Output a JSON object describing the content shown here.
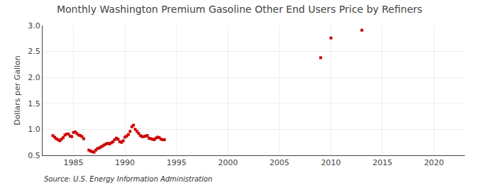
{
  "chart_data": {
    "type": "scatter",
    "title": "Monthly Washington Premium Gasoline Other End Users Price by Refiners",
    "ylabel": "Dollars per Gallon",
    "annotations": [
      "Source: U.S. Energy Information Administration"
    ],
    "color": "#cc0000",
    "marker": "square",
    "grid": true,
    "xlim": [
      1982,
      2023
    ],
    "ylim": [
      0.5,
      3.0
    ],
    "xticks": [
      1985,
      1990,
      1995,
      2000,
      2005,
      2010,
      2015,
      2020
    ],
    "yticks": [
      0.5,
      {
        "value": 1.0,
        "label": "1.0"
      },
      1.5,
      {
        "value": 2.0,
        "label": "2.0"
      },
      2.5,
      {
        "value": 3.0,
        "label": "3.0"
      }
    ],
    "x": [
      1983.0,
      1983.17,
      1983.33,
      1983.5,
      1983.67,
      1983.83,
      1984.0,
      1984.17,
      1984.33,
      1984.5,
      1984.67,
      1984.83,
      1985.0,
      1985.17,
      1985.33,
      1985.5,
      1985.67,
      1985.83,
      1986.0,
      1986.5,
      1986.67,
      1986.83,
      1987.0,
      1987.17,
      1987.33,
      1987.5,
      1987.67,
      1987.83,
      1988.0,
      1988.17,
      1988.33,
      1988.5,
      1988.67,
      1988.83,
      1989.0,
      1989.17,
      1989.33,
      1989.5,
      1989.67,
      1989.83,
      1990.0,
      1990.17,
      1990.33,
      1990.5,
      1990.67,
      1990.83,
      1991.0,
      1991.17,
      1991.33,
      1991.5,
      1991.67,
      1991.83,
      1992.0,
      1992.17,
      1992.33,
      1992.5,
      1992.67,
      1992.83,
      1993.0,
      1993.17,
      1993.33,
      1993.5,
      1993.67,
      1993.83,
      2009.0,
      2010.0,
      2013.0
    ],
    "values": [
      0.879,
      0.849,
      0.82,
      0.8,
      0.78,
      0.81,
      0.84,
      0.89,
      0.91,
      0.91,
      0.87,
      0.86,
      0.94,
      0.95,
      0.92,
      0.89,
      0.88,
      0.86,
      0.82,
      0.6,
      0.58,
      0.57,
      0.56,
      0.6,
      0.63,
      0.64,
      0.66,
      0.68,
      0.7,
      0.72,
      0.73,
      0.72,
      0.74,
      0.76,
      0.8,
      0.83,
      0.81,
      0.76,
      0.75,
      0.78,
      0.85,
      0.87,
      0.9,
      0.96,
      1.05,
      1.08,
      1.0,
      0.96,
      0.92,
      0.88,
      0.86,
      0.86,
      0.87,
      0.88,
      0.83,
      0.82,
      0.81,
      0.8,
      0.83,
      0.85,
      0.84,
      0.81,
      0.8,
      0.8,
      2.38,
      2.76,
      2.91
    ]
  }
}
